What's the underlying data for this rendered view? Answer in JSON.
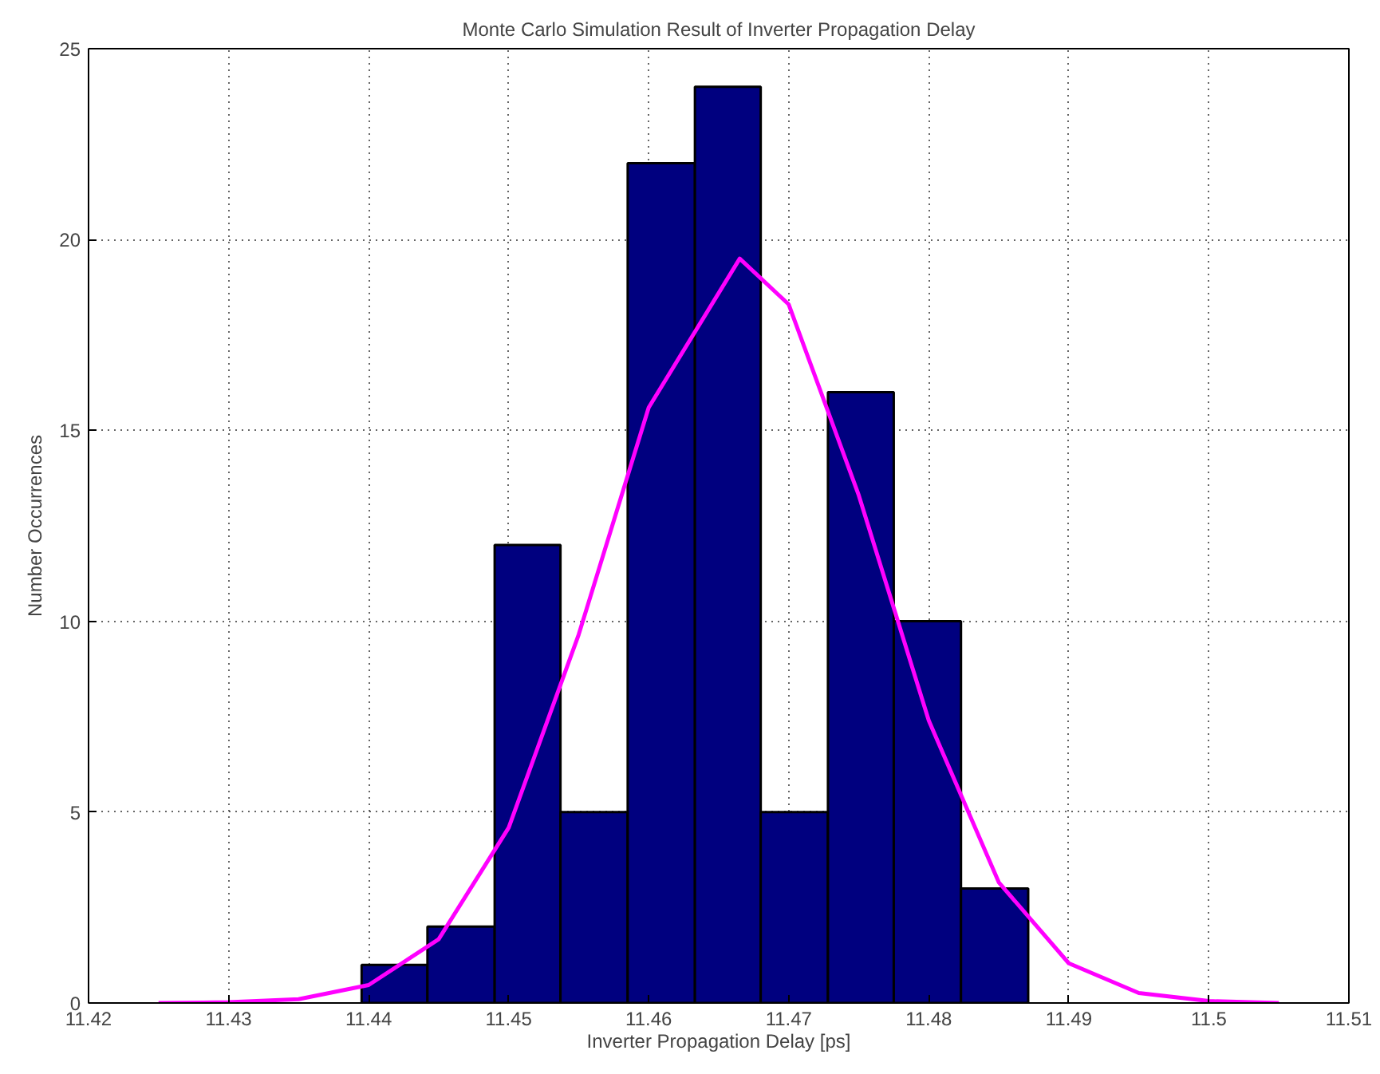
{
  "chart_data": {
    "type": "histogram",
    "title": "Monte Carlo Simulation Result of Inverter Propagation Delay",
    "xlabel": "Inverter Propagation Delay [ps]",
    "ylabel": "Number Occurrences",
    "bins": [
      11.4395,
      11.4442,
      11.449,
      11.4537,
      11.4585,
      11.4633,
      11.468,
      11.4728,
      11.4775,
      11.4823,
      11.4871
    ],
    "values": [
      1,
      2,
      12,
      5,
      22,
      24,
      5,
      16,
      10,
      3
    ],
    "color": "#00007f",
    "series": [
      {
        "type": "line",
        "color": "#ff00ff",
        "x": [
          11.425,
          11.43,
          11.435,
          11.44,
          11.445,
          11.45,
          11.455,
          11.46,
          11.4665,
          11.47,
          11.475,
          11.48,
          11.485,
          11.49,
          11.495,
          11.5,
          11.505
        ],
        "values": [
          0,
          0.02,
          0.1,
          0.47,
          1.67,
          4.59,
          9.65,
          15.6,
          19.5,
          18.3,
          13.3,
          7.4,
          3.16,
          1.04,
          0.26,
          0.05,
          0
        ]
      }
    ],
    "xlim": [
      11.42,
      11.51
    ],
    "xticks": [
      11.42,
      11.43,
      11.44,
      11.45,
      11.46,
      11.47,
      11.48,
      11.49,
      11.5,
      11.51
    ],
    "ylim": [
      0,
      25
    ],
    "yticks": [
      0,
      5,
      10,
      15,
      20,
      25
    ],
    "grid": true
  }
}
